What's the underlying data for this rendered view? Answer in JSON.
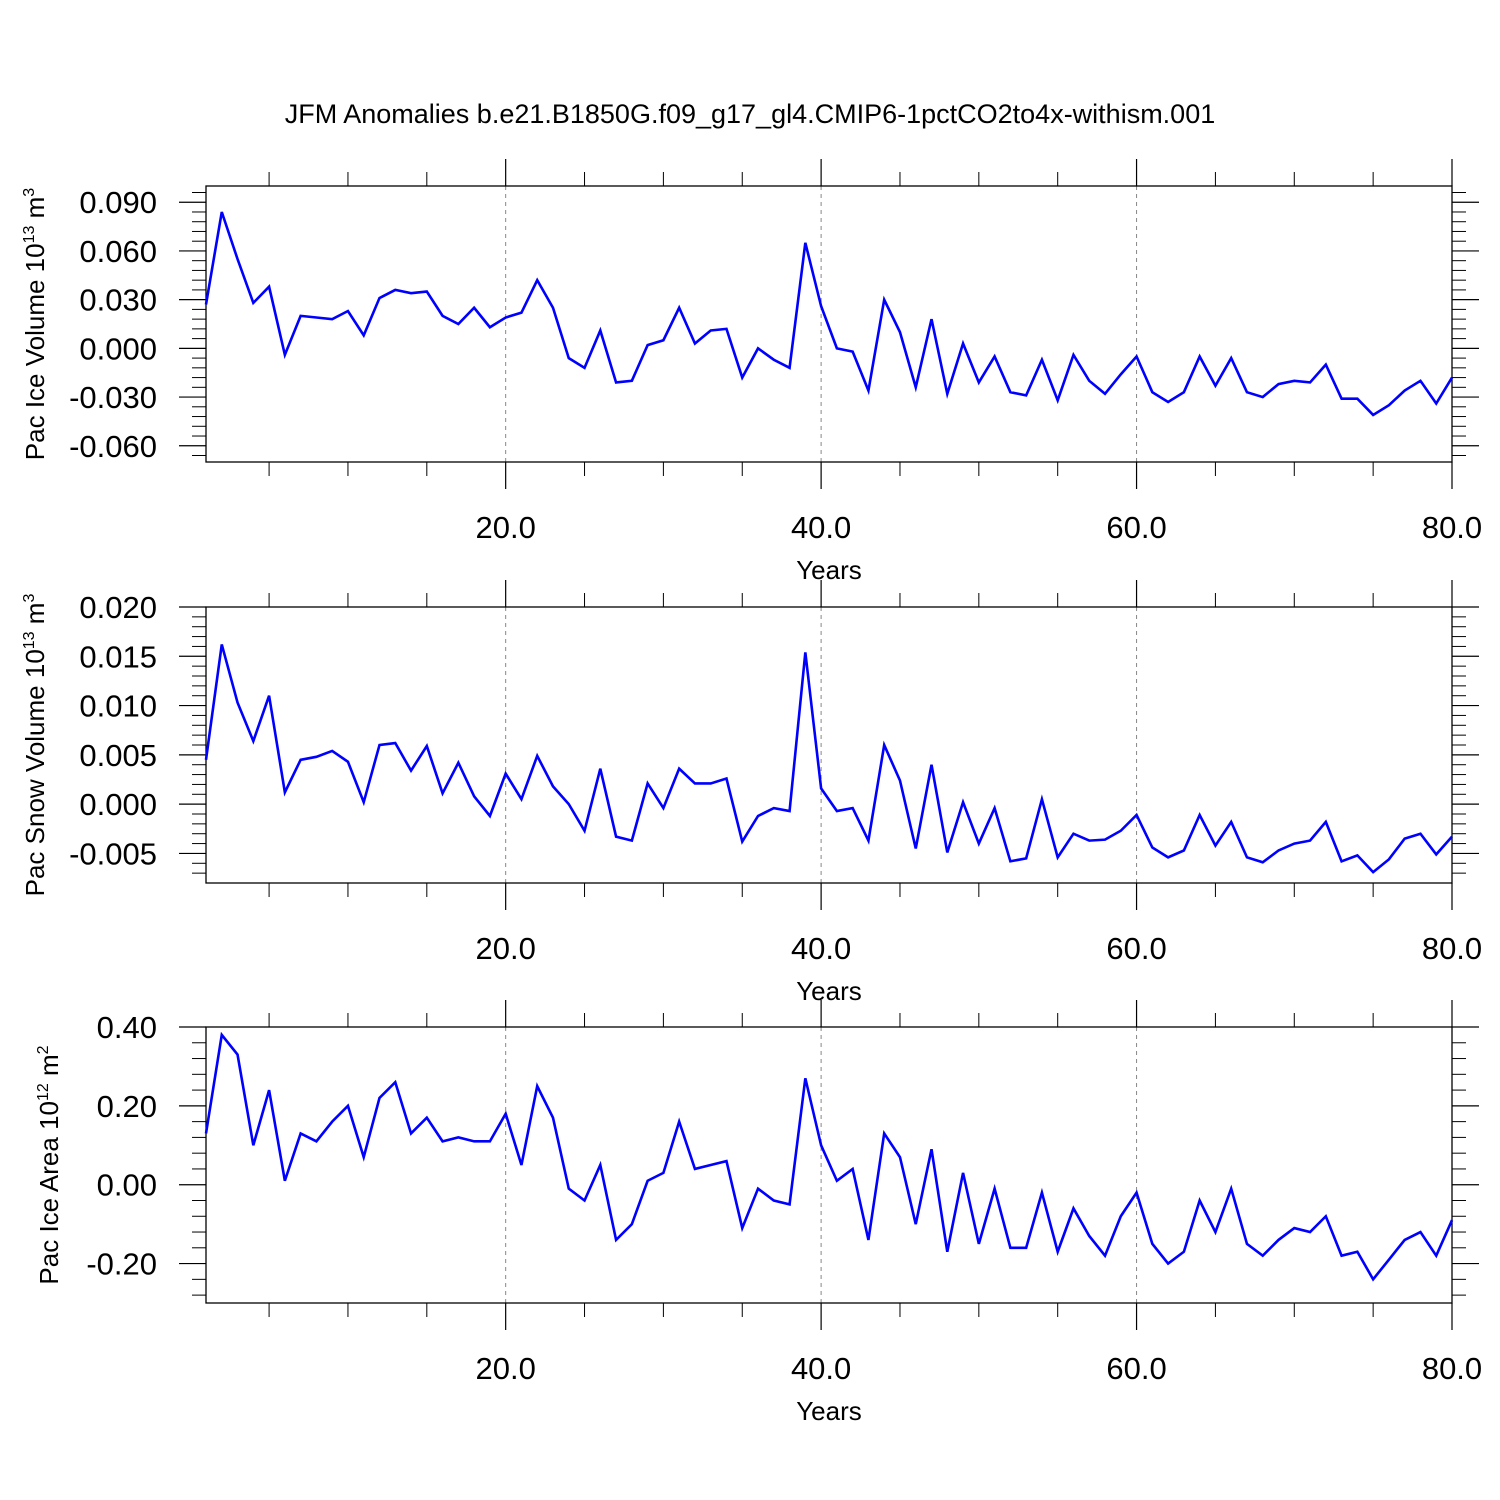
{
  "figure_title": "JFM Anomalies b.e21.B1850G.f09_g17_gl4.CMIP6-1pctCO2to4x-withism.001",
  "colors": {
    "line": "#0000ff",
    "axis": "#000000",
    "grid": "#888888"
  },
  "chart_data": [
    {
      "type": "line",
      "title": "JFM Anomalies b.e21.B1850G.f09_g17_gl4.CMIP6-1pctCO2to4x-withism.001",
      "xlabel": "Years",
      "ylabel": {
        "base": "Pac Ice Volume 10",
        "exp": "13",
        "unit": " m",
        "unit_exp": "3"
      },
      "xlim": [
        1,
        80
      ],
      "ylim": [
        -0.07,
        0.1
      ],
      "yticks": [
        -0.06,
        -0.03,
        0.0,
        0.03,
        0.06,
        0.09
      ],
      "ytick_labels": [
        "-0.060",
        "-0.030",
        "0.000",
        "0.030",
        "0.060",
        "0.090"
      ],
      "xticks": [
        20,
        40,
        60,
        80
      ],
      "xtick_labels": [
        "20.0",
        "40.0",
        "60.0",
        "80.0"
      ],
      "grid": "vertical dashed at major x ticks",
      "x_start": 1,
      "series": [
        {
          "values": [
            0.027,
            0.084,
            0.055,
            0.028,
            0.038,
            -0.004,
            0.02,
            0.019,
            0.018,
            0.023,
            0.008,
            0.031,
            0.036,
            0.034,
            0.035,
            0.02,
            0.015,
            0.025,
            0.013,
            0.019,
            0.022,
            0.042,
            0.025,
            -0.006,
            -0.012,
            0.011,
            -0.021,
            -0.02,
            0.002,
            0.005,
            0.025,
            0.003,
            0.011,
            0.012,
            -0.018,
            0.0,
            -0.007,
            -0.012,
            0.065,
            0.026,
            0.0,
            -0.002,
            -0.026,
            0.03,
            0.01,
            -0.024,
            0.018,
            -0.028,
            0.003,
            -0.021,
            -0.005,
            -0.027,
            -0.029,
            -0.007,
            -0.032,
            -0.004,
            -0.02,
            -0.028,
            -0.016,
            -0.005,
            -0.027,
            -0.033,
            -0.027,
            -0.005,
            -0.023,
            -0.006,
            -0.027,
            -0.03,
            -0.022,
            -0.02,
            -0.021,
            -0.01,
            -0.031,
            -0.031,
            -0.041,
            -0.035,
            -0.026,
            -0.02,
            -0.034,
            -0.018
          ]
        }
      ]
    },
    {
      "type": "line",
      "xlabel": "Years",
      "ylabel": {
        "base": "Pac Snow Volume 10",
        "exp": "13",
        "unit": " m",
        "unit_exp": "3"
      },
      "xlim": [
        1,
        80
      ],
      "ylim": [
        -0.008,
        0.02
      ],
      "yticks": [
        -0.005,
        0.0,
        0.005,
        0.01,
        0.015,
        0.02
      ],
      "ytick_labels": [
        "-0.005",
        "0.000",
        "0.005",
        "0.010",
        "0.015",
        "0.020"
      ],
      "xticks": [
        20,
        40,
        60,
        80
      ],
      "xtick_labels": [
        "20.0",
        "40.0",
        "60.0",
        "80.0"
      ],
      "grid": "vertical dashed at major x ticks",
      "x_start": 1,
      "series": [
        {
          "values": [
            0.0045,
            0.0162,
            0.0103,
            0.0064,
            0.011,
            0.0012,
            0.0045,
            0.0048,
            0.0054,
            0.0043,
            0.0002,
            0.006,
            0.0062,
            0.0034,
            0.0059,
            0.0011,
            0.0042,
            0.0008,
            -0.0012,
            0.0031,
            0.0005,
            0.0049,
            0.0018,
            0.0,
            -0.0027,
            0.0036,
            -0.0033,
            -0.0037,
            0.0021,
            -0.0004,
            0.0036,
            0.0021,
            0.0021,
            0.0026,
            -0.0038,
            -0.0012,
            -0.0004,
            -0.0007,
            0.0154,
            0.0016,
            -0.0007,
            -0.0004,
            -0.0037,
            0.006,
            0.0024,
            -0.0045,
            0.004,
            -0.0049,
            0.0002,
            -0.004,
            -0.0004,
            -0.0058,
            -0.0055,
            0.0005,
            -0.0054,
            -0.003,
            -0.0037,
            -0.0036,
            -0.0027,
            -0.0011,
            -0.0044,
            -0.0054,
            -0.0047,
            -0.0011,
            -0.0042,
            -0.0018,
            -0.0054,
            -0.0059,
            -0.0047,
            -0.004,
            -0.0037,
            -0.0018,
            -0.0058,
            -0.0052,
            -0.0069,
            -0.0056,
            -0.0035,
            -0.003,
            -0.0051,
            -0.0033
          ]
        }
      ]
    },
    {
      "type": "line",
      "xlabel": "Years",
      "ylabel": {
        "base": "Pac Ice Area 10",
        "exp": "12",
        "unit": " m",
        "unit_exp": "2"
      },
      "xlim": [
        1,
        80
      ],
      "ylim": [
        -0.3,
        0.4
      ],
      "yticks": [
        -0.2,
        0.0,
        0.2,
        0.4
      ],
      "ytick_labels": [
        "-0.20",
        "0.00",
        "0.20",
        "0.40"
      ],
      "xticks": [
        20,
        40,
        60,
        80
      ],
      "xtick_labels": [
        "20.0",
        "40.0",
        "60.0",
        "80.0"
      ],
      "grid": "vertical dashed at major x ticks",
      "x_start": 1,
      "series": [
        {
          "values": [
            0.13,
            0.38,
            0.33,
            0.1,
            0.24,
            0.01,
            0.13,
            0.11,
            0.16,
            0.2,
            0.07,
            0.22,
            0.26,
            0.13,
            0.17,
            0.11,
            0.12,
            0.11,
            0.11,
            0.18,
            0.05,
            0.25,
            0.17,
            -0.01,
            -0.04,
            0.05,
            -0.14,
            -0.1,
            0.01,
            0.03,
            0.16,
            0.04,
            0.05,
            0.06,
            -0.11,
            -0.01,
            -0.04,
            -0.05,
            0.27,
            0.1,
            0.01,
            0.04,
            -0.14,
            0.13,
            0.07,
            -0.1,
            0.09,
            -0.17,
            0.03,
            -0.15,
            -0.01,
            -0.16,
            -0.16,
            -0.02,
            -0.17,
            -0.06,
            -0.13,
            -0.18,
            -0.08,
            -0.02,
            -0.15,
            -0.2,
            -0.17,
            -0.04,
            -0.12,
            -0.01,
            -0.15,
            -0.18,
            -0.14,
            -0.11,
            -0.12,
            -0.08,
            -0.18,
            -0.17,
            -0.24,
            -0.19,
            -0.14,
            -0.12,
            -0.18,
            -0.09
          ]
        }
      ]
    }
  ]
}
